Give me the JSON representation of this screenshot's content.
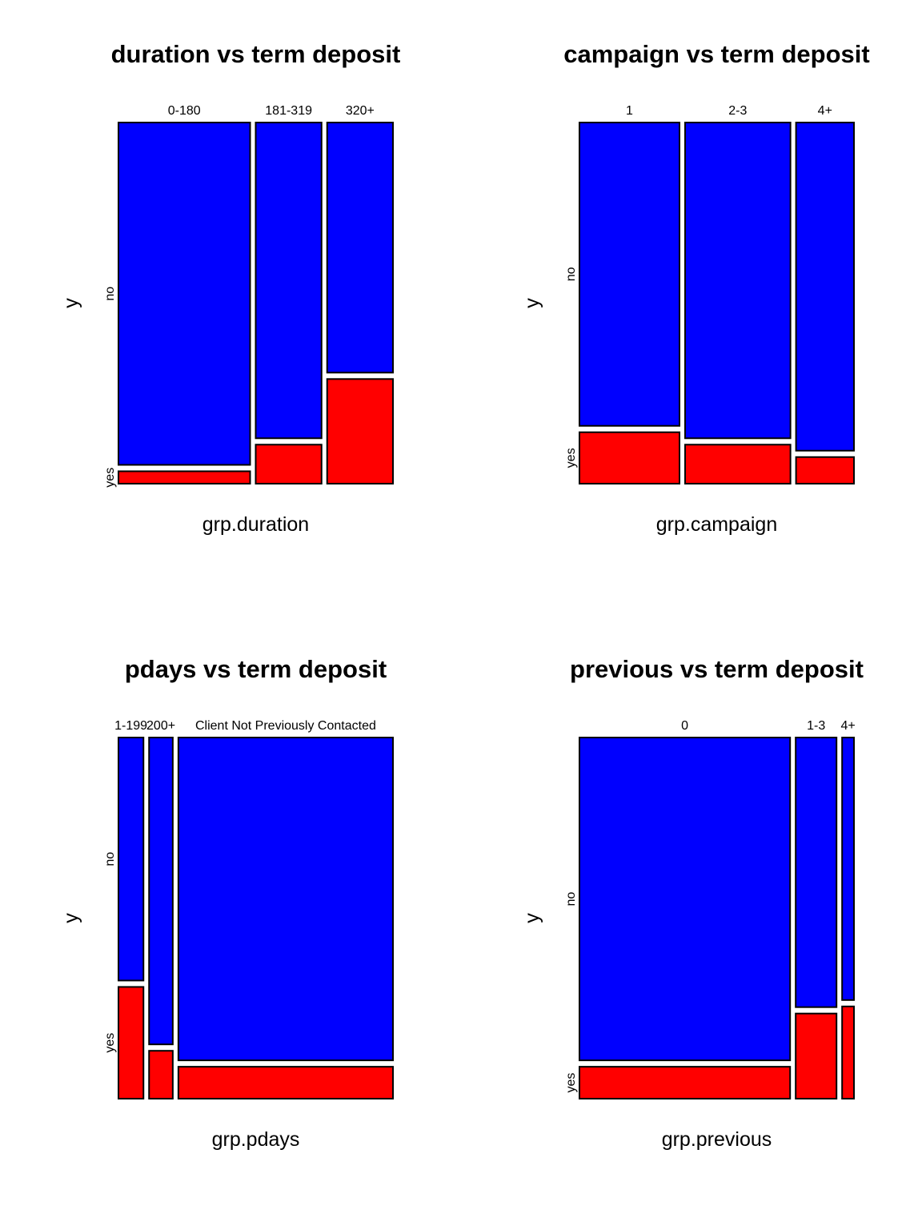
{
  "colors": {
    "no": "#0000ff",
    "yes": "#ff0000",
    "border": "#000000"
  },
  "chart_data": [
    {
      "type": "mosaic",
      "title": "duration vs term deposit",
      "xlabel": "grp.duration",
      "ylabel": "y",
      "y_levels": [
        "no",
        "yes"
      ],
      "categories": [
        "0-180",
        "181-319",
        "320+"
      ],
      "proportions": [
        0.49,
        0.245,
        0.245
      ],
      "yes_share": [
        0.035,
        0.11,
        0.295
      ]
    },
    {
      "type": "mosaic",
      "title": "campaign vs term deposit",
      "xlabel": "grp.campaign",
      "ylabel": "y",
      "y_levels": [
        "no",
        "yes"
      ],
      "categories": [
        "1",
        "2-3",
        "4+"
      ],
      "proportions": [
        0.38,
        0.4,
        0.22
      ],
      "yes_share": [
        0.145,
        0.11,
        0.075
      ]
    },
    {
      "type": "mosaic",
      "title": "pdays vs term deposit",
      "xlabel": "grp.pdays",
      "ylabel": "y",
      "y_levels": [
        "no",
        "yes"
      ],
      "categories": [
        "1-199",
        "200+",
        "Client Not Previously Contacted"
      ],
      "proportions": [
        0.095,
        0.09,
        0.815
      ],
      "yes_share": [
        0.315,
        0.135,
        0.09
      ]
    },
    {
      "type": "mosaic",
      "title": "previous vs term deposit",
      "xlabel": "grp.previous",
      "ylabel": "y",
      "y_levels": [
        "no",
        "yes"
      ],
      "categories": [
        "0",
        "1-3",
        "4+"
      ],
      "proportions": [
        0.8,
        0.155,
        0.045
      ],
      "yes_share": [
        0.09,
        0.24,
        0.26
      ]
    }
  ]
}
